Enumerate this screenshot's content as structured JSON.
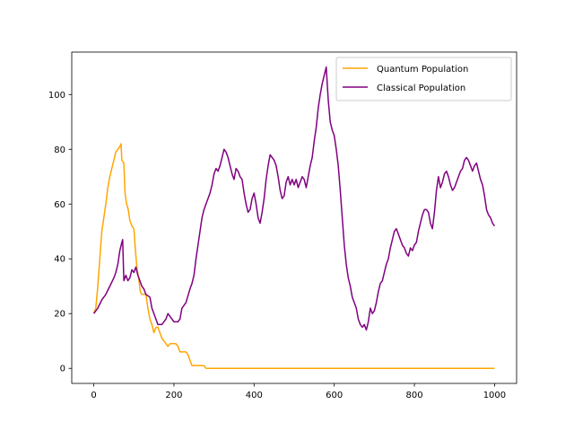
{
  "chart_data": {
    "type": "line",
    "title": "",
    "xlabel": "",
    "ylabel": "",
    "xlim": [
      -55,
      1055
    ],
    "ylim": [
      -5.5,
      115.5
    ],
    "xticks": [
      0,
      200,
      400,
      600,
      800,
      1000
    ],
    "yticks": [
      0,
      20,
      40,
      60,
      80,
      100
    ],
    "grid": false,
    "legend_position": "top-right",
    "series": [
      {
        "name": "Quantum Population",
        "color": "#ffa500",
        "points": [
          [
            0,
            20
          ],
          [
            5,
            22
          ],
          [
            10,
            30
          ],
          [
            15,
            40
          ],
          [
            20,
            50
          ],
          [
            25,
            55
          ],
          [
            30,
            60
          ],
          [
            35,
            66
          ],
          [
            40,
            70
          ],
          [
            45,
            73
          ],
          [
            50,
            76
          ],
          [
            55,
            79
          ],
          [
            60,
            80
          ],
          [
            65,
            81
          ],
          [
            68,
            82
          ],
          [
            70,
            76
          ],
          [
            75,
            75
          ],
          [
            78,
            64
          ],
          [
            82,
            60
          ],
          [
            86,
            58
          ],
          [
            90,
            54
          ],
          [
            95,
            52
          ],
          [
            100,
            51
          ],
          [
            104,
            43
          ],
          [
            108,
            36
          ],
          [
            112,
            33
          ],
          [
            116,
            28
          ],
          [
            120,
            27
          ],
          [
            125,
            27
          ],
          [
            130,
            27
          ],
          [
            135,
            22
          ],
          [
            140,
            18
          ],
          [
            145,
            16
          ],
          [
            150,
            13
          ],
          [
            155,
            15
          ],
          [
            160,
            15
          ],
          [
            165,
            13
          ],
          [
            170,
            11
          ],
          [
            175,
            10
          ],
          [
            180,
            9
          ],
          [
            185,
            8
          ],
          [
            190,
            9
          ],
          [
            195,
            9
          ],
          [
            200,
            9
          ],
          [
            205,
            9
          ],
          [
            210,
            8
          ],
          [
            215,
            6
          ],
          [
            220,
            6
          ],
          [
            225,
            6
          ],
          [
            230,
            6
          ],
          [
            235,
            5
          ],
          [
            240,
            3
          ],
          [
            245,
            1
          ],
          [
            250,
            1
          ],
          [
            255,
            1
          ],
          [
            260,
            1
          ],
          [
            265,
            1
          ],
          [
            270,
            1
          ],
          [
            275,
            1
          ],
          [
            280,
            0
          ],
          [
            290,
            0
          ],
          [
            300,
            0
          ],
          [
            400,
            0
          ],
          [
            500,
            0
          ],
          [
            600,
            0
          ],
          [
            700,
            0
          ],
          [
            800,
            0
          ],
          [
            900,
            0
          ],
          [
            1000,
            0
          ]
        ]
      },
      {
        "name": "Classical Population",
        "color": "#800080",
        "points": [
          [
            0,
            20
          ],
          [
            10,
            22
          ],
          [
            20,
            25
          ],
          [
            30,
            27
          ],
          [
            40,
            30
          ],
          [
            50,
            33
          ],
          [
            55,
            35
          ],
          [
            60,
            38
          ],
          [
            65,
            43
          ],
          [
            70,
            46
          ],
          [
            72,
            47
          ],
          [
            75,
            32
          ],
          [
            80,
            34
          ],
          [
            85,
            32
          ],
          [
            90,
            33
          ],
          [
            95,
            36
          ],
          [
            100,
            35
          ],
          [
            105,
            37
          ],
          [
            110,
            34
          ],
          [
            115,
            32
          ],
          [
            120,
            30
          ],
          [
            125,
            29
          ],
          [
            130,
            27
          ],
          [
            140,
            26
          ],
          [
            145,
            22
          ],
          [
            150,
            20
          ],
          [
            160,
            16
          ],
          [
            170,
            16
          ],
          [
            180,
            18
          ],
          [
            185,
            20
          ],
          [
            190,
            19
          ],
          [
            200,
            17
          ],
          [
            210,
            17
          ],
          [
            215,
            18
          ],
          [
            220,
            22
          ],
          [
            230,
            24
          ],
          [
            240,
            29
          ],
          [
            245,
            31
          ],
          [
            250,
            34
          ],
          [
            255,
            40
          ],
          [
            260,
            45
          ],
          [
            265,
            50
          ],
          [
            270,
            55
          ],
          [
            275,
            58
          ],
          [
            280,
            60
          ],
          [
            285,
            62
          ],
          [
            290,
            64
          ],
          [
            295,
            67
          ],
          [
            300,
            71
          ],
          [
            305,
            73
          ],
          [
            310,
            72
          ],
          [
            315,
            74
          ],
          [
            320,
            77
          ],
          [
            325,
            80
          ],
          [
            330,
            79
          ],
          [
            335,
            77
          ],
          [
            340,
            74
          ],
          [
            345,
            71
          ],
          [
            350,
            69
          ],
          [
            355,
            73
          ],
          [
            360,
            72
          ],
          [
            365,
            70
          ],
          [
            370,
            69
          ],
          [
            375,
            64
          ],
          [
            380,
            60
          ],
          [
            385,
            57
          ],
          [
            390,
            58
          ],
          [
            395,
            62
          ],
          [
            400,
            64
          ],
          [
            405,
            60
          ],
          [
            410,
            55
          ],
          [
            415,
            53
          ],
          [
            420,
            57
          ],
          [
            425,
            62
          ],
          [
            430,
            69
          ],
          [
            435,
            74
          ],
          [
            440,
            78
          ],
          [
            445,
            77
          ],
          [
            450,
            76
          ],
          [
            455,
            74
          ],
          [
            460,
            70
          ],
          [
            465,
            65
          ],
          [
            470,
            62
          ],
          [
            475,
            63
          ],
          [
            480,
            68
          ],
          [
            485,
            70
          ],
          [
            490,
            67
          ],
          [
            495,
            69
          ],
          [
            500,
            67
          ],
          [
            505,
            69
          ],
          [
            510,
            66
          ],
          [
            515,
            68
          ],
          [
            520,
            70
          ],
          [
            525,
            69
          ],
          [
            530,
            66
          ],
          [
            535,
            70
          ],
          [
            540,
            74
          ],
          [
            545,
            77
          ],
          [
            550,
            83
          ],
          [
            555,
            88
          ],
          [
            560,
            95
          ],
          [
            565,
            100
          ],
          [
            570,
            104
          ],
          [
            575,
            107
          ],
          [
            580,
            110
          ],
          [
            585,
            98
          ],
          [
            590,
            90
          ],
          [
            595,
            87
          ],
          [
            600,
            85
          ],
          [
            605,
            80
          ],
          [
            610,
            74
          ],
          [
            615,
            65
          ],
          [
            620,
            55
          ],
          [
            625,
            45
          ],
          [
            630,
            38
          ],
          [
            635,
            33
          ],
          [
            640,
            30
          ],
          [
            645,
            26
          ],
          [
            650,
            24
          ],
          [
            655,
            22
          ],
          [
            660,
            18
          ],
          [
            665,
            16
          ],
          [
            670,
            15
          ],
          [
            675,
            16
          ],
          [
            680,
            14
          ],
          [
            685,
            17
          ],
          [
            690,
            22
          ],
          [
            695,
            20
          ],
          [
            700,
            21
          ],
          [
            705,
            24
          ],
          [
            710,
            28
          ],
          [
            715,
            31
          ],
          [
            720,
            32
          ],
          [
            725,
            35
          ],
          [
            730,
            38
          ],
          [
            735,
            40
          ],
          [
            740,
            44
          ],
          [
            745,
            47
          ],
          [
            750,
            50
          ],
          [
            755,
            51
          ],
          [
            760,
            49
          ],
          [
            765,
            47
          ],
          [
            770,
            45
          ],
          [
            775,
            44
          ],
          [
            780,
            42
          ],
          [
            785,
            41
          ],
          [
            790,
            44
          ],
          [
            795,
            43
          ],
          [
            800,
            45
          ],
          [
            805,
            46
          ],
          [
            810,
            50
          ],
          [
            815,
            53
          ],
          [
            820,
            56
          ],
          [
            825,
            58
          ],
          [
            830,
            58
          ],
          [
            835,
            57
          ],
          [
            840,
            53
          ],
          [
            845,
            51
          ],
          [
            850,
            57
          ],
          [
            855,
            65
          ],
          [
            860,
            70
          ],
          [
            865,
            66
          ],
          [
            870,
            68
          ],
          [
            875,
            71
          ],
          [
            880,
            72
          ],
          [
            885,
            70
          ],
          [
            890,
            67
          ],
          [
            895,
            65
          ],
          [
            900,
            66
          ],
          [
            905,
            68
          ],
          [
            910,
            70
          ],
          [
            915,
            72
          ],
          [
            920,
            73
          ],
          [
            925,
            76
          ],
          [
            930,
            77
          ],
          [
            935,
            76
          ],
          [
            940,
            74
          ],
          [
            945,
            72
          ],
          [
            950,
            74
          ],
          [
            955,
            75
          ],
          [
            960,
            72
          ],
          [
            965,
            69
          ],
          [
            970,
            67
          ],
          [
            975,
            63
          ],
          [
            980,
            58
          ],
          [
            985,
            56
          ],
          [
            990,
            55
          ],
          [
            995,
            53
          ],
          [
            1000,
            52
          ]
        ]
      }
    ]
  }
}
